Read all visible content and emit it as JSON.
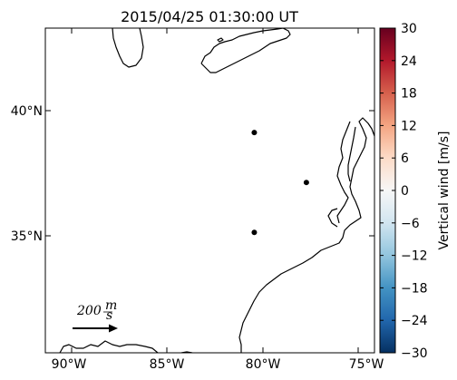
{
  "map": {
    "title": "2015/04/25 01:30:00 UT",
    "x_ticks": [
      "90°W",
      "85°W",
      "80°W",
      "75°W"
    ],
    "y_ticks": [
      "40°N",
      "35°N"
    ],
    "stations": [
      {
        "lon": -80.5,
        "lat": 39.1
      },
      {
        "lon": -77.8,
        "lat": 37.1
      },
      {
        "lon": -80.5,
        "lat": 35.1
      }
    ],
    "scale_arrow": {
      "value": "200",
      "unit_num": "m",
      "unit_den": "s"
    }
  },
  "colorbar": {
    "label": "Vertical wind [m/s]",
    "ticks": [
      "30",
      "24",
      "18",
      "12",
      "6",
      "0",
      "−6",
      "−12",
      "−18",
      "−24",
      "−30"
    ],
    "range": [
      -30,
      30
    ],
    "colormap": [
      "#67001f",
      "#b2182b",
      "#d6604d",
      "#f4a582",
      "#fddbc7",
      "#f7f7f7",
      "#d1e5f0",
      "#92c5de",
      "#4393c3",
      "#2166ac",
      "#053061"
    ]
  }
}
